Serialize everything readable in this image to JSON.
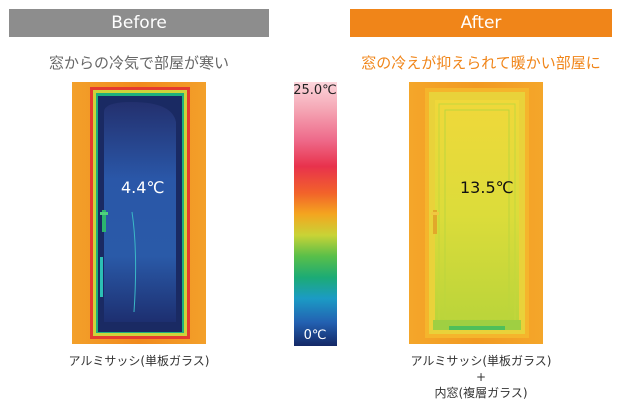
{
  "before": {
    "header": "Before",
    "subtitle": "窓からの冷気で部屋が寒い",
    "temperature": "4.4℃",
    "caption": "アルミサッシ(単板ガラス)"
  },
  "after": {
    "header": "After",
    "subtitle": "窓の冷えが抑えられて暖かい部屋に",
    "temperature": "13.5℃",
    "caption_line1": "アルミサッシ(単板ガラス)",
    "caption_line2": "+",
    "caption_line3": "内窓(複層ガラス)"
  },
  "scale": {
    "max_label": "25.0℃",
    "min_label": "0℃"
  },
  "colors": {
    "before_header": "#8d8d8d",
    "after_header": "#f08519",
    "after_subtitle": "#f08519"
  }
}
